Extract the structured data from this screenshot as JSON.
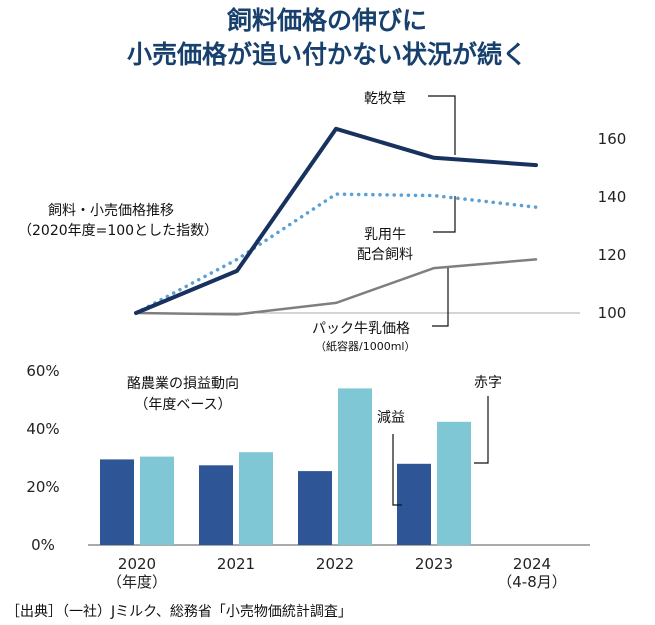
{
  "title": [
    "飼料価格の伸びに",
    "小売価格が追い付かない状況が続く"
  ],
  "colors": {
    "title": "#17406d",
    "feed_line": "#17325f",
    "dairy_feed_line": "#5b9fd3",
    "milk_price_line": "#7f7f7f",
    "bar_dark": "#2e5596",
    "bar_light": "#7fc7d4"
  },
  "source": "［出典］（一社）Jミルク、総務省「小売物価統計調査」",
  "chart_data": [
    {
      "type": "line",
      "title": "飼料・小売価格推移",
      "subtitle": "（2020年度=100とした指数）",
      "x": [
        2020,
        2021,
        2022,
        2023,
        2024
      ],
      "ylim": [
        100,
        160
      ],
      "yticks": [
        100,
        120,
        140,
        160
      ],
      "series": [
        {
          "name": "乾牧草",
          "values": [
            100,
            114.5,
            163.5,
            153.5,
            151
          ],
          "style": "solid-thick",
          "colorKey": "feed_line"
        },
        {
          "name": "乳用牛配合飼料",
          "label_lines": [
            "乳用牛",
            "配合飼料"
          ],
          "values": [
            100,
            118.5,
            141,
            140.5,
            136.5
          ],
          "style": "dotted",
          "colorKey": "dairy_feed_line"
        },
        {
          "name": "パック牛乳価格",
          "note": "（紙容器/1000ml）",
          "values": [
            100,
            99.5,
            103.5,
            115.5,
            118.5
          ],
          "style": "solid",
          "colorKey": "milk_price_line"
        }
      ]
    },
    {
      "type": "bar",
      "title": "酪農業の損益動向",
      "subtitle": "（年度ベース）",
      "categories": [
        "2020",
        "2021",
        "2022",
        "2023",
        "2024"
      ],
      "category_notes": [
        "（年度）",
        "",
        "",
        "",
        "（4-8月）"
      ],
      "ylim": [
        0,
        60
      ],
      "yticks": [
        "0%",
        "20%",
        "40%",
        "60%"
      ],
      "series": [
        {
          "name": "減益",
          "values": [
            29.5,
            27.5,
            25.5,
            28,
            null
          ],
          "colorKey": "bar_dark"
        },
        {
          "name": "赤字",
          "values": [
            30.5,
            32,
            54,
            42.5,
            null
          ],
          "colorKey": "bar_light"
        }
      ]
    }
  ]
}
